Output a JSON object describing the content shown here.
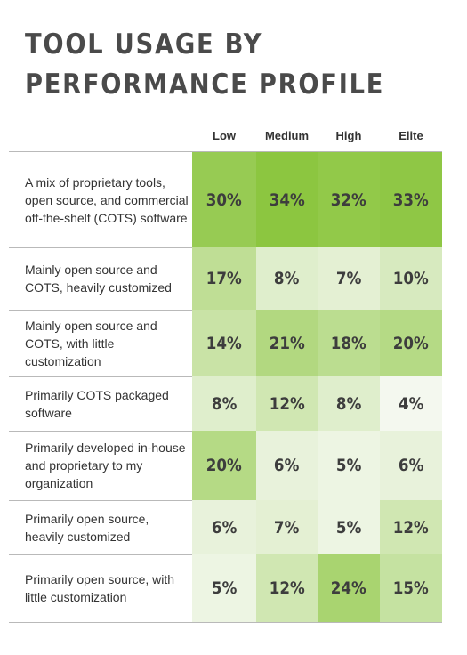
{
  "title_lines": [
    "TOOL USAGE BY",
    "PERFORMANCE PROFILE"
  ],
  "colors": {
    "text": "#3c3c3c",
    "cell_min": "#f4f8ef",
    "cell_max": "#8cc640",
    "rule": "#b9b9b9"
  },
  "chart_data": {
    "type": "heatmap",
    "title": "TOOL USAGE BY PERFORMANCE PROFILE",
    "columns": [
      "Low",
      "Medium",
      "High",
      "Elite"
    ],
    "rows": [
      "A mix of proprietary tools, open source, and commercial off-the-shelf (COTS) software",
      "Mainly open source and COTS, heavily customized",
      "Mainly open source and COTS, with little customization",
      "Primarily COTS packaged software",
      "Primarily developed in-house and proprietary to my organization",
      "Primarily open source, heavily customized",
      "Primarily open source, with little customization"
    ],
    "values": [
      [
        30,
        34,
        32,
        33
      ],
      [
        17,
        8,
        7,
        10
      ],
      [
        14,
        21,
        18,
        20
      ],
      [
        8,
        12,
        8,
        4
      ],
      [
        20,
        6,
        5,
        6
      ],
      [
        6,
        7,
        5,
        12
      ],
      [
        5,
        12,
        24,
        15
      ]
    ],
    "value_suffix": "%",
    "legend": "none"
  }
}
